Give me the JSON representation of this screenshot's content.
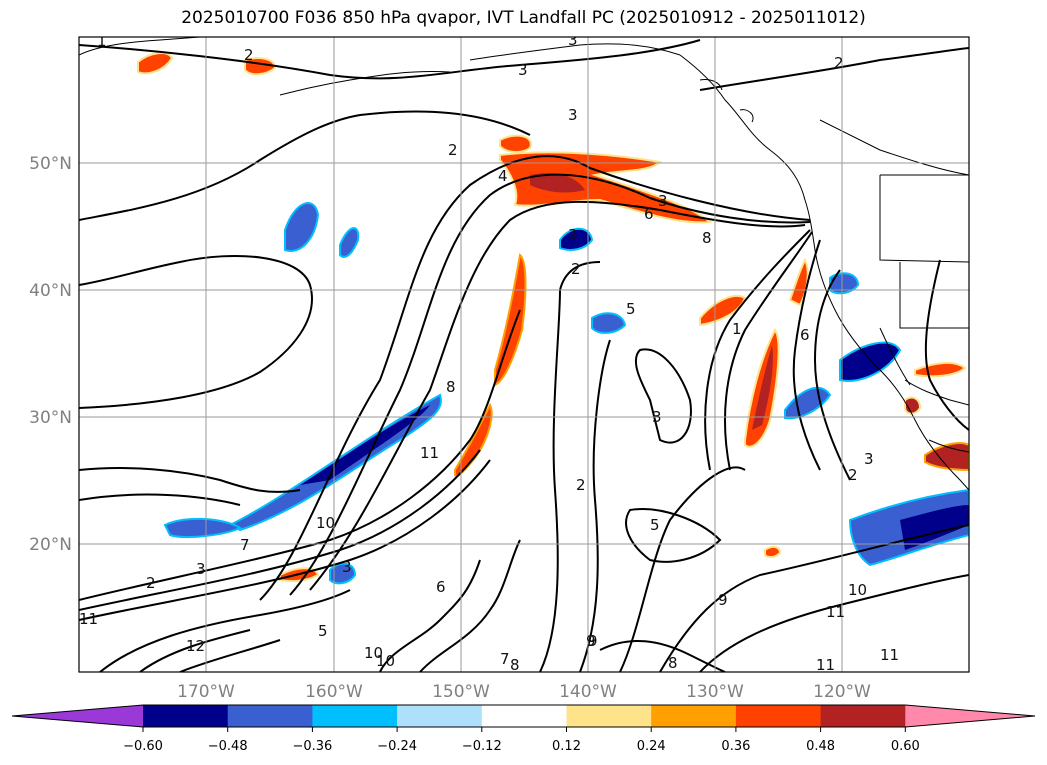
{
  "title": "2025010700 F036 850 hPa qvapor, IVT Landfall PC (2025010912 - 2025011012)",
  "map": {
    "lat_labels": [
      "50°N",
      "40°N",
      "30°N",
      "20°N"
    ],
    "lon_labels": [
      "170°W",
      "160°W",
      "150°W",
      "140°W",
      "130°W",
      "120°W"
    ],
    "grid": true,
    "contour_labels": [
      "1",
      "2",
      "2",
      "2",
      "3",
      "3",
      "3",
      "4",
      "5",
      "6",
      "8",
      "2",
      "3",
      "5",
      "3",
      "2",
      "1",
      "6",
      "8",
      "11",
      "10",
      "7",
      "2",
      "3",
      "9",
      "6",
      "5",
      "3",
      "12",
      "10",
      "10",
      "7",
      "8",
      "9",
      "8",
      "3",
      "9",
      "10",
      "11",
      "11",
      "2",
      "3",
      "11",
      "10",
      "11",
      "2"
    ]
  },
  "colorbar": {
    "ticks": [
      "−0.60",
      "−0.48",
      "−0.36",
      "−0.24",
      "−0.12",
      "0.12",
      "0.24",
      "0.36",
      "0.48",
      "0.60"
    ],
    "colors": [
      "#9a38d8",
      "#00008a",
      "#3a5fd0",
      "#00bfff",
      "#afe0fb",
      "#ffffff",
      "#fee38a",
      "#ffa000",
      "#ff4200",
      "#b22222",
      "#ff88ab"
    ],
    "extend": "both"
  }
}
